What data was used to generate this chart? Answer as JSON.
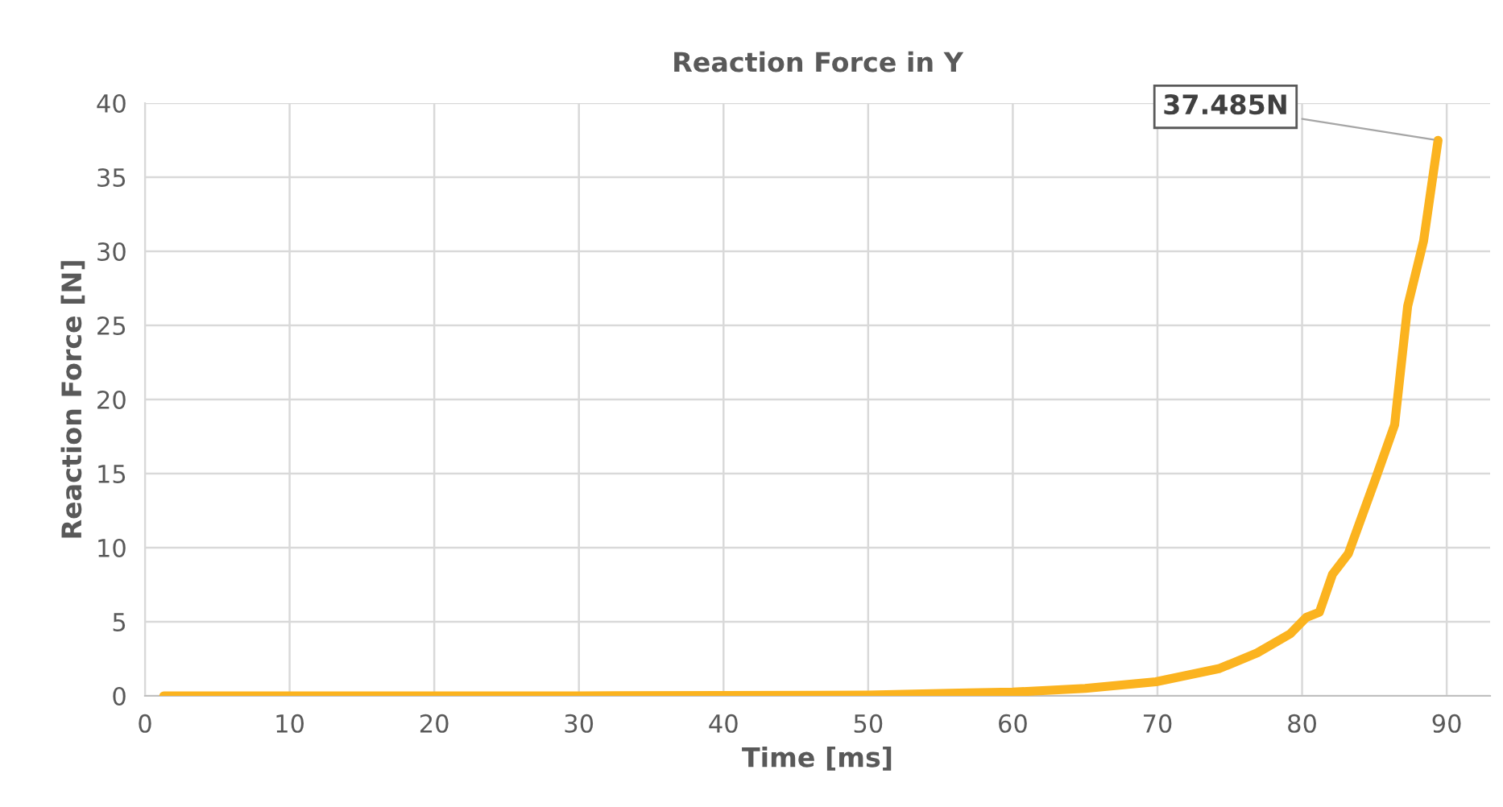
{
  "chart_data": {
    "type": "line",
    "title": "Reaction Force in Y",
    "xlabel": "Time [ms]",
    "ylabel": "Reaction Force [N]",
    "series": [
      {
        "color": "#fbb31f",
        "x": [
          1.3,
          10,
          20,
          30,
          40,
          50,
          56.9,
          60,
          65,
          69.9,
          74.3,
          76.9,
          79.2,
          80.3,
          81.2,
          82.1,
          83.2,
          85.1,
          86.4,
          87.3,
          88.4,
          89.4
        ],
        "values": [
          0,
          0,
          0,
          0,
          0.02,
          0.05,
          0.2,
          0.25,
          0.5,
          0.95,
          1.85,
          2.9,
          4.2,
          5.3,
          5.65,
          8.2,
          9.6,
          14.7,
          18.3,
          26.3,
          30.7,
          37.485
        ]
      }
    ],
    "annotations": [
      {
        "text": "37.485N",
        "x": 89.4,
        "y": 37.485
      }
    ],
    "xlim": [
      0,
      93
    ],
    "xticks": [
      0,
      10,
      20,
      30,
      40,
      50,
      60,
      70,
      80,
      90
    ],
    "ylim": [
      0,
      40
    ],
    "yticks": [
      0,
      5,
      10,
      15,
      20,
      25,
      30,
      35,
      40
    ],
    "grid": true,
    "legend": false,
    "marker": "none",
    "line_style": "solid"
  }
}
